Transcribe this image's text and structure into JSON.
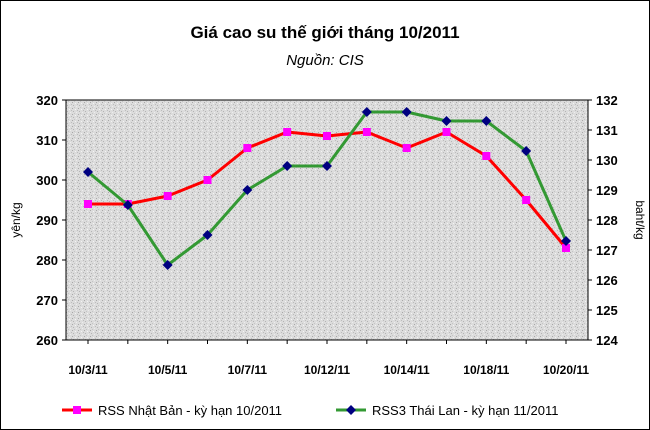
{
  "chart_data": {
    "type": "line",
    "title": "Giá cao su thế giới tháng 10/2011",
    "subtitle": "Nguồn: CIS",
    "ylabel_left": "yên/kg",
    "ylabel_right": "baht/kg",
    "y_left": {
      "min": 260,
      "max": 320,
      "step": 10
    },
    "y_right": {
      "min": 124,
      "max": 132,
      "step": 1
    },
    "x_tick_labels": [
      "10/3/11",
      "10/5/11",
      "10/7/11",
      "10/12/11",
      "10/14/11",
      "10/18/11",
      "10/20/11"
    ],
    "x_tick_indices": [
      0,
      2,
      4,
      6,
      8,
      10,
      12
    ],
    "grid": false,
    "plot_background": "speckled gray",
    "legend_position": "bottom",
    "series": [
      {
        "name": "RSS Nhật Bản - kỳ hạn 10/2011",
        "axis": "left",
        "color": "#ff0000",
        "marker_color": "#ff00ff",
        "marker": "square",
        "values": [
          294,
          294,
          296,
          300,
          308,
          312,
          311,
          312,
          308,
          312,
          306,
          295,
          283
        ]
      },
      {
        "name": "RSS3 Thái Lan - kỳ hạn 11/2011",
        "axis": "right",
        "color": "#339933",
        "marker_color": "#000080",
        "marker": "diamond",
        "values": [
          129.6,
          128.5,
          126.5,
          127.5,
          129,
          129.8,
          129.8,
          131.6,
          131.6,
          131.3,
          131.3,
          130.3,
          127.3
        ]
      }
    ]
  }
}
